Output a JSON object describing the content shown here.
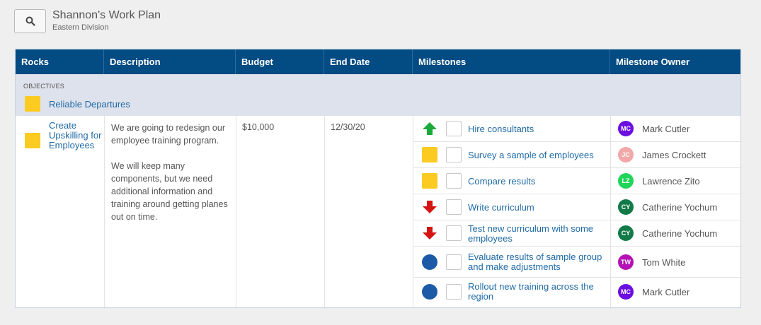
{
  "header": {
    "title": "Shannon's Work Plan",
    "subtitle": "Eastern Division"
  },
  "columns": [
    "Rocks",
    "Description",
    "Budget",
    "End Date",
    "Milestones",
    "Milestone Owner"
  ],
  "objectives": {
    "label": "OBJECTIVES",
    "name": "Reliable Departures",
    "status": "yellow"
  },
  "rock": {
    "name": "Create Upskilling for Employees",
    "status": "yellow",
    "description": [
      "We are going to redesign our employee training program.",
      "We will keep many components, but we need additional information and training around getting planes out on time."
    ],
    "budget": "$10,000",
    "end_date": "12/30/20"
  },
  "milestones": [
    {
      "name": "Hire consultants",
      "status": "up-arrow",
      "owner": "Mark Cutler",
      "initials": "MC",
      "avatar_color": "#6b0fe0"
    },
    {
      "name": "Survey a sample of employees",
      "status": "yellow-square",
      "owner": "James Crockett",
      "initials": "JC",
      "avatar_color": "#f2a8a8"
    },
    {
      "name": "Compare results",
      "status": "yellow-square",
      "owner": "Lawrence Zito",
      "initials": "LZ",
      "avatar_color": "#22d45a"
    },
    {
      "name": "Write curriculum",
      "status": "down-arrow",
      "owner": "Catherine Yochum",
      "initials": "CY",
      "avatar_color": "#127a47"
    },
    {
      "name": "Test new curriculum with some employees",
      "status": "down-arrow",
      "owner": "Catherine Yochum",
      "initials": "CY",
      "avatar_color": "#127a47"
    },
    {
      "name": "Evaluate results of sample group and make adjustments",
      "status": "blue-circle",
      "owner": "Tom White",
      "initials": "TW",
      "avatar_color": "#b512b5"
    },
    {
      "name": "Rollout new training across the region",
      "status": "blue-circle",
      "owner": "Mark Cutler",
      "initials": "MC",
      "avatar_color": "#6b0fe0"
    }
  ],
  "colors": {
    "header_bg": "#034b83",
    "link": "#1f6aa6",
    "yellow": "#fbcb22",
    "green": "#1aaa3a",
    "red": "#d41313",
    "blue": "#1c5aa8"
  }
}
